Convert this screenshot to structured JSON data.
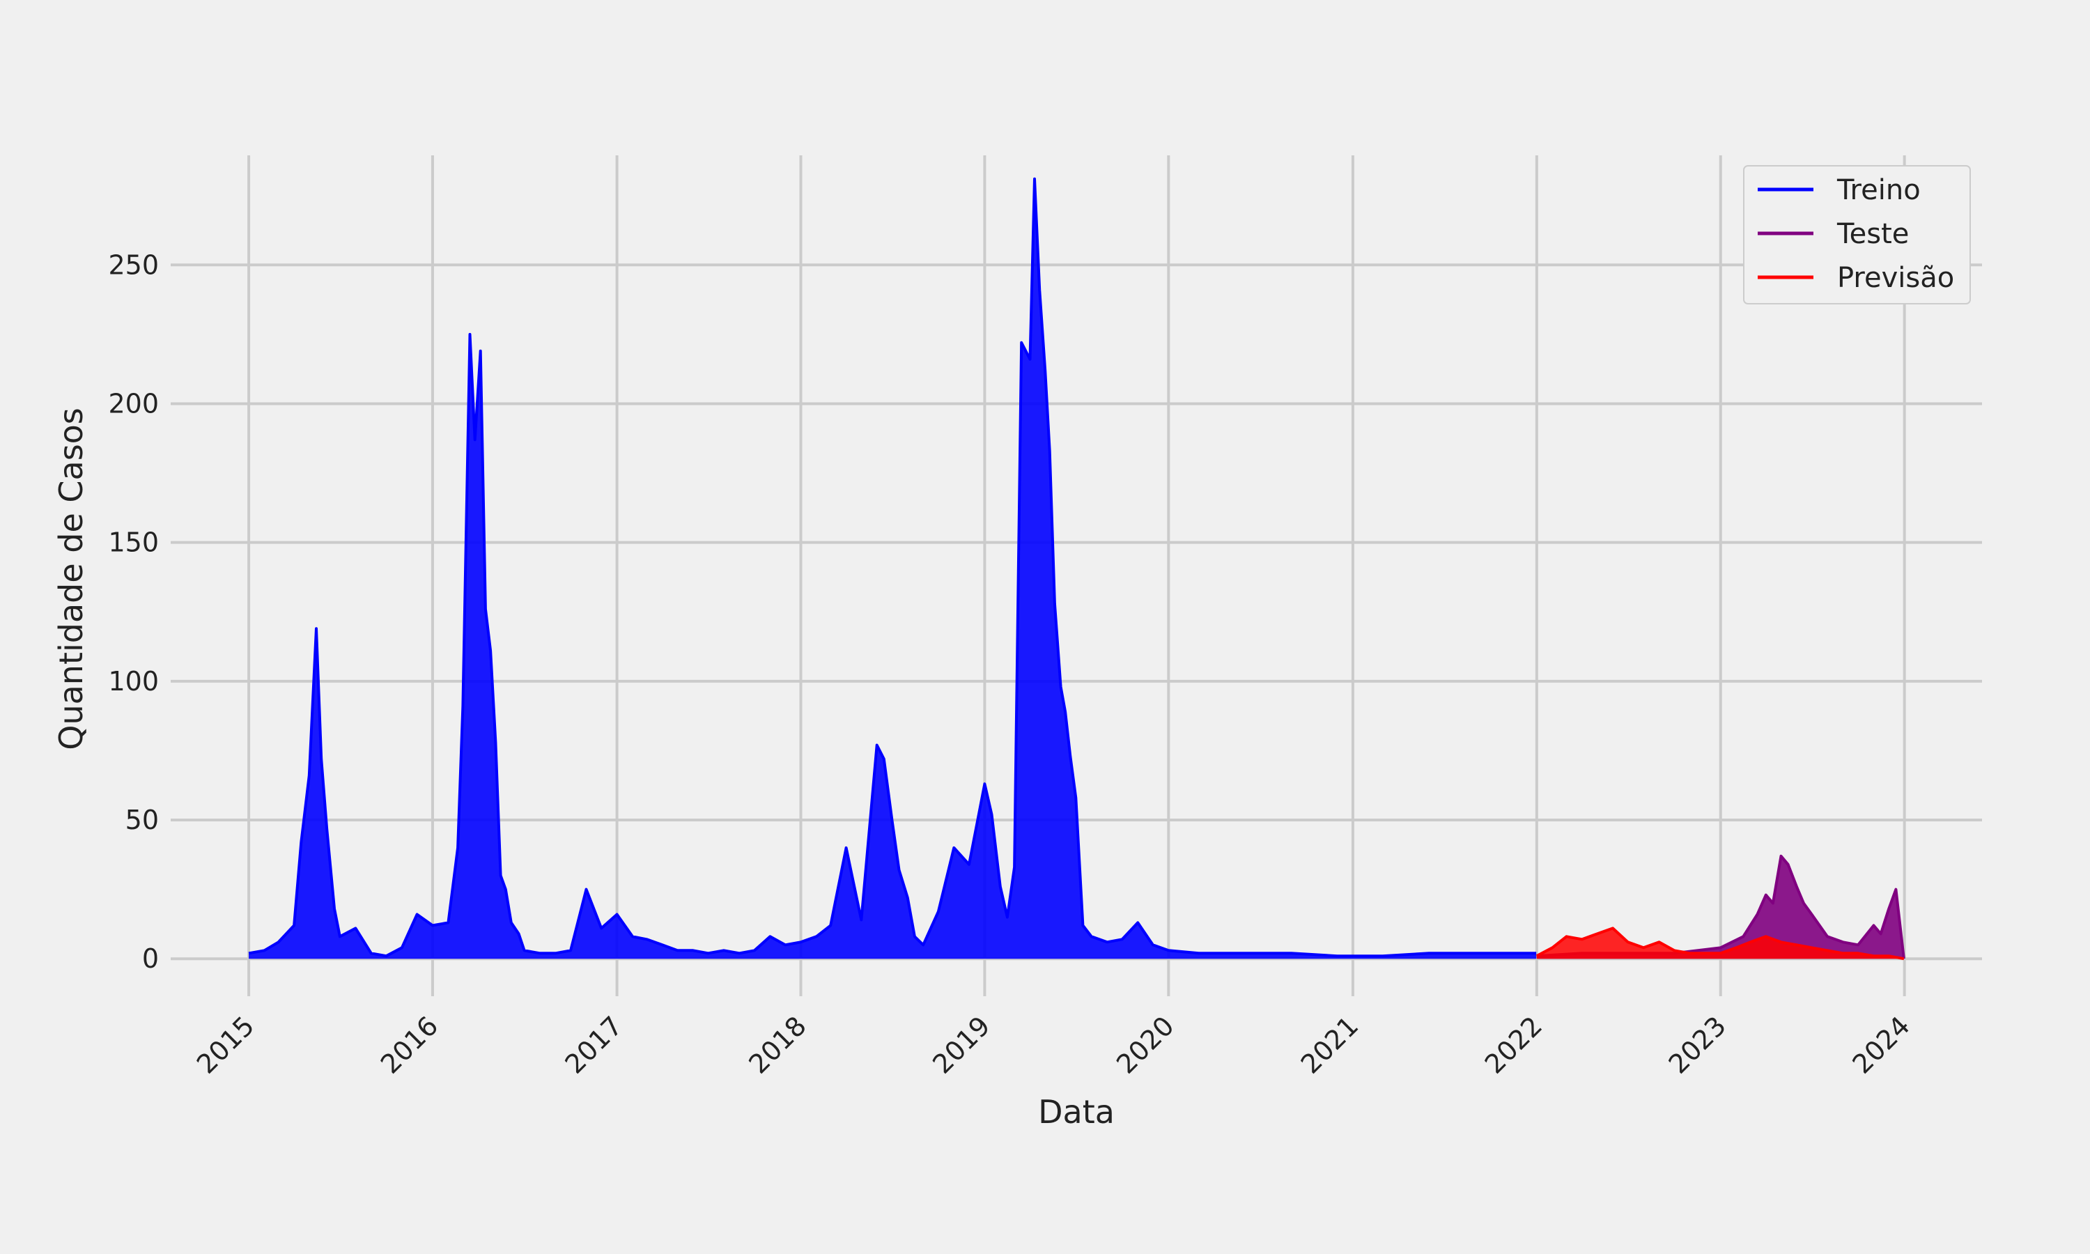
{
  "chart_data": {
    "type": "line",
    "xlabel": "Data",
    "ylabel": "Quantidade de Casos",
    "xlim": [
      "2014-07-30",
      "2024-06-03"
    ],
    "ylim": [
      -13.5,
      294
    ],
    "x_ticks": [
      "2015",
      "2016",
      "2017",
      "2018",
      "2019",
      "2020",
      "2021",
      "2022",
      "2023",
      "2024"
    ],
    "y_ticks": [
      0,
      50,
      100,
      150,
      200,
      250
    ],
    "grid": true,
    "legend_position": "top-right",
    "colors": {
      "Treino": "#0000ff",
      "Teste": "#800080",
      "Previsão": "#ff0000",
      "background": "#f0f0f0",
      "grid": "#cbcbcb"
    },
    "series": [
      {
        "name": "Treino",
        "x": [
          "2015-01-01",
          "2015-02-01",
          "2015-03-01",
          "2015-04-01",
          "2015-04-15",
          "2015-05-01",
          "2015-05-15",
          "2015-05-25",
          "2015-06-05",
          "2015-06-20",
          "2015-07-01",
          "2015-08-01",
          "2015-09-01",
          "2015-10-01",
          "2015-11-01",
          "2015-12-01",
          "2016-01-01",
          "2016-02-01",
          "2016-02-20",
          "2016-03-01",
          "2016-03-15",
          "2016-03-25",
          "2016-04-05",
          "2016-04-15",
          "2016-04-25",
          "2016-05-05",
          "2016-05-15",
          "2016-05-25",
          "2016-06-05",
          "2016-06-20",
          "2016-07-01",
          "2016-08-01",
          "2016-09-01",
          "2016-10-01",
          "2016-11-01",
          "2016-12-01",
          "2017-01-01",
          "2017-02-01",
          "2017-03-01",
          "2017-04-01",
          "2017-05-01",
          "2017-06-01",
          "2017-07-01",
          "2017-08-01",
          "2017-09-01",
          "2017-10-01",
          "2017-11-01",
          "2017-12-01",
          "2018-01-01",
          "2018-02-01",
          "2018-03-01",
          "2018-04-01",
          "2018-05-01",
          "2018-06-01",
          "2018-06-15",
          "2018-07-01",
          "2018-07-15",
          "2018-08-01",
          "2018-08-15",
          "2018-09-01",
          "2018-10-01",
          "2018-11-01",
          "2018-12-01",
          "2019-01-01",
          "2019-01-15",
          "2019-02-01",
          "2019-02-15",
          "2019-03-01",
          "2019-03-15",
          "2019-04-01",
          "2019-04-10",
          "2019-04-20",
          "2019-05-01",
          "2019-05-10",
          "2019-05-20",
          "2019-06-01",
          "2019-06-10",
          "2019-06-20",
          "2019-07-01",
          "2019-07-15",
          "2019-08-01",
          "2019-09-01",
          "2019-10-01",
          "2019-11-01",
          "2019-12-01",
          "2020-01-01",
          "2020-03-01",
          "2020-06-01",
          "2020-09-01",
          "2020-12-01",
          "2021-03-01",
          "2021-06-01",
          "2021-09-01",
          "2021-12-31"
        ],
        "y": [
          2,
          3,
          6,
          12,
          42,
          66,
          119,
          72,
          47,
          18,
          8,
          11,
          2,
          1,
          4,
          16,
          12,
          13,
          40,
          91,
          225,
          187,
          219,
          126,
          111,
          78,
          30,
          25,
          13,
          9,
          3,
          2,
          2,
          3,
          25,
          11,
          16,
          8,
          7,
          5,
          3,
          3,
          2,
          3,
          2,
          3,
          8,
          5,
          6,
          8,
          12,
          40,
          14,
          77,
          72,
          50,
          32,
          22,
          8,
          5,
          17,
          40,
          34,
          63,
          52,
          26,
          15,
          33,
          222,
          216,
          281,
          241,
          212,
          183,
          128,
          98,
          89,
          73,
          58,
          12,
          8,
          6,
          7,
          13,
          5,
          3,
          2,
          2,
          2,
          1,
          1,
          2,
          2,
          2
        ]
      },
      {
        "name": "Teste",
        "x": [
          "2022-01-01",
          "2022-04-01",
          "2022-07-01",
          "2022-10-01",
          "2023-01-01",
          "2023-02-15",
          "2023-03-15",
          "2023-04-01",
          "2023-04-15",
          "2023-05-01",
          "2023-05-15",
          "2023-06-01",
          "2023-06-15",
          "2023-07-01",
          "2023-08-01",
          "2023-09-01",
          "2023-10-01",
          "2023-11-01",
          "2023-11-15",
          "2023-12-01",
          "2023-12-15",
          "2023-12-31"
        ],
        "y": [
          1,
          2,
          2,
          2,
          4,
          8,
          16,
          23,
          20,
          37,
          34,
          26,
          20,
          16,
          8,
          6,
          5,
          12,
          9,
          18,
          25,
          0
        ]
      },
      {
        "name": "Previsão",
        "x": [
          "2022-01-01",
          "2022-02-01",
          "2022-03-01",
          "2022-04-01",
          "2022-05-01",
          "2022-06-01",
          "2022-07-01",
          "2022-08-01",
          "2022-09-01",
          "2022-10-01",
          "2022-11-01",
          "2022-12-01",
          "2023-01-01",
          "2023-02-01",
          "2023-03-01",
          "2023-04-01",
          "2023-05-01",
          "2023-06-01",
          "2023-07-01",
          "2023-08-01",
          "2023-09-01",
          "2023-10-01",
          "2023-11-01",
          "2023-12-01",
          "2023-12-31"
        ],
        "y": [
          1,
          4,
          8,
          7,
          9,
          11,
          6,
          4,
          6,
          3,
          2,
          2,
          2,
          4,
          6,
          8,
          6,
          5,
          4,
          3,
          2,
          2,
          1,
          1,
          0
        ]
      }
    ]
  }
}
